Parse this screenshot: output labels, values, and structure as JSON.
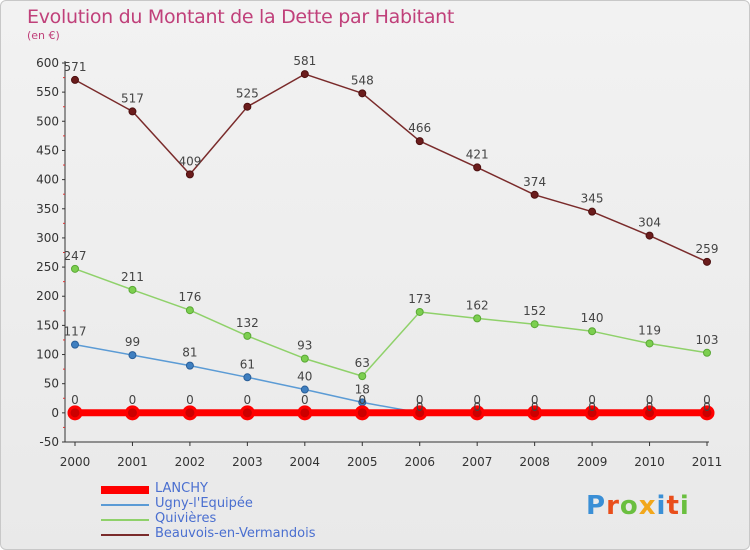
{
  "title": "Evolution du Montant de la Dette par Habitant",
  "subtitle": "(en €)",
  "logo": {
    "text": "Proxiti",
    "colors": [
      "#3a8fd6",
      "#e94e1b",
      "#6abf3f",
      "#f2a71b",
      "#3a8fd6",
      "#e94e1b",
      "#6abf3f"
    ]
  },
  "chart_data": {
    "type": "line",
    "title": "Evolution du Montant de la Dette par Habitant",
    "subtitle": "(en €)",
    "xlabel": "",
    "ylabel": "",
    "x": [
      "2000",
      "2001",
      "2002",
      "2003",
      "2004",
      "2005",
      "2006",
      "2007",
      "2008",
      "2009",
      "2010",
      "2011"
    ],
    "ylim": [
      -50,
      600
    ],
    "yticks": [
      "-50",
      "0",
      "50",
      "100",
      "150",
      "200",
      "250",
      "300",
      "350",
      "400",
      "450",
      "500",
      "550",
      "600"
    ],
    "grid": false,
    "legend_position": "bottom-left",
    "series": [
      {
        "name": "LANCHY",
        "color": "#ff0000",
        "values": [
          0,
          0,
          0,
          0,
          0,
          0,
          0,
          0,
          0,
          0,
          0,
          0
        ],
        "labels": [
          "0",
          "0",
          "0",
          "0",
          "0",
          "0",
          "0",
          "0",
          "0",
          "0",
          "0",
          "0"
        ]
      },
      {
        "name": "Ugny-l'Equipée",
        "color": "#5b9bd5",
        "values": [
          117,
          99,
          81,
          61,
          40,
          18,
          0,
          0,
          0,
          0,
          0,
          0
        ],
        "labels": [
          "117",
          "99",
          "81",
          "61",
          "40",
          "18",
          "0",
          "0",
          "0",
          "0",
          "0",
          "0"
        ]
      },
      {
        "name": "Quivières",
        "color": "#8fd16a",
        "values": [
          247,
          211,
          176,
          132,
          93,
          63,
          173,
          162,
          152,
          140,
          119,
          103
        ],
        "labels": [
          "247",
          "211",
          "176",
          "132",
          "93",
          "63",
          "173",
          "162",
          "152",
          "140",
          "119",
          "103"
        ]
      },
      {
        "name": "Beauvois-en-Vermandois",
        "color": "#7a2b2b",
        "values": [
          571,
          517,
          409,
          525,
          581,
          548,
          466,
          421,
          374,
          345,
          304,
          259
        ],
        "labels": [
          "571",
          "517",
          "409",
          "525",
          "581",
          "548",
          "466",
          "421",
          "374",
          "345",
          "304",
          "259"
        ]
      }
    ]
  }
}
